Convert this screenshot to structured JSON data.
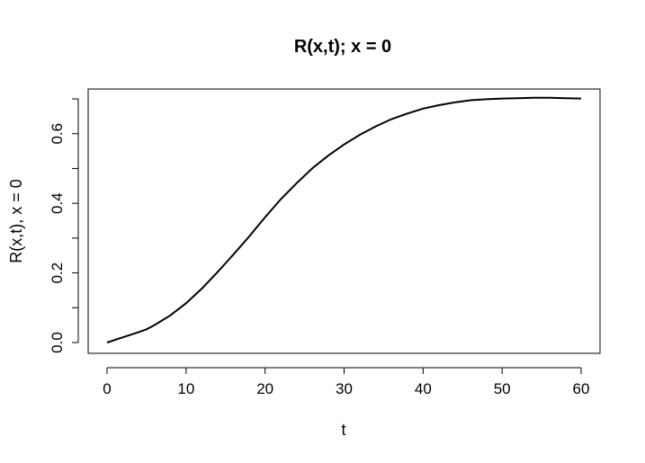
{
  "chart_data": {
    "type": "line",
    "title": "R(x,t); x = 0",
    "xlabel": "t",
    "ylabel": "R(x,t), x = 0",
    "xlim": [
      0,
      60
    ],
    "ylim": [
      0,
      0.7
    ],
    "xticks": [
      0,
      10,
      20,
      30,
      40,
      50,
      60
    ],
    "xtick_labels": [
      "0",
      "10",
      "20",
      "30",
      "40",
      "50",
      "60"
    ],
    "yticks": [
      0.0,
      0.1,
      0.2,
      0.3,
      0.4,
      0.5,
      0.6,
      0.7
    ],
    "ytick_labels": [
      "0.0",
      "",
      "0.2",
      "",
      "0.4",
      "",
      "0.6",
      ""
    ],
    "grid": false,
    "series_color": "#000000",
    "series": [
      {
        "x": [
          0,
          2,
          4,
          5,
          6,
          8,
          10,
          12,
          14,
          16,
          18,
          20,
          22,
          24,
          26,
          28,
          30,
          32,
          34,
          36,
          38,
          40,
          42,
          44,
          46,
          48,
          50,
          52,
          54,
          56,
          58,
          60
        ],
        "y": [
          0.0,
          0.015,
          0.03,
          0.038,
          0.05,
          0.078,
          0.113,
          0.155,
          0.203,
          0.253,
          0.305,
          0.36,
          0.412,
          0.458,
          0.501,
          0.537,
          0.569,
          0.597,
          0.621,
          0.642,
          0.658,
          0.672,
          0.682,
          0.69,
          0.696,
          0.699,
          0.701,
          0.702,
          0.703,
          0.703,
          0.702,
          0.701
        ]
      }
    ]
  }
}
